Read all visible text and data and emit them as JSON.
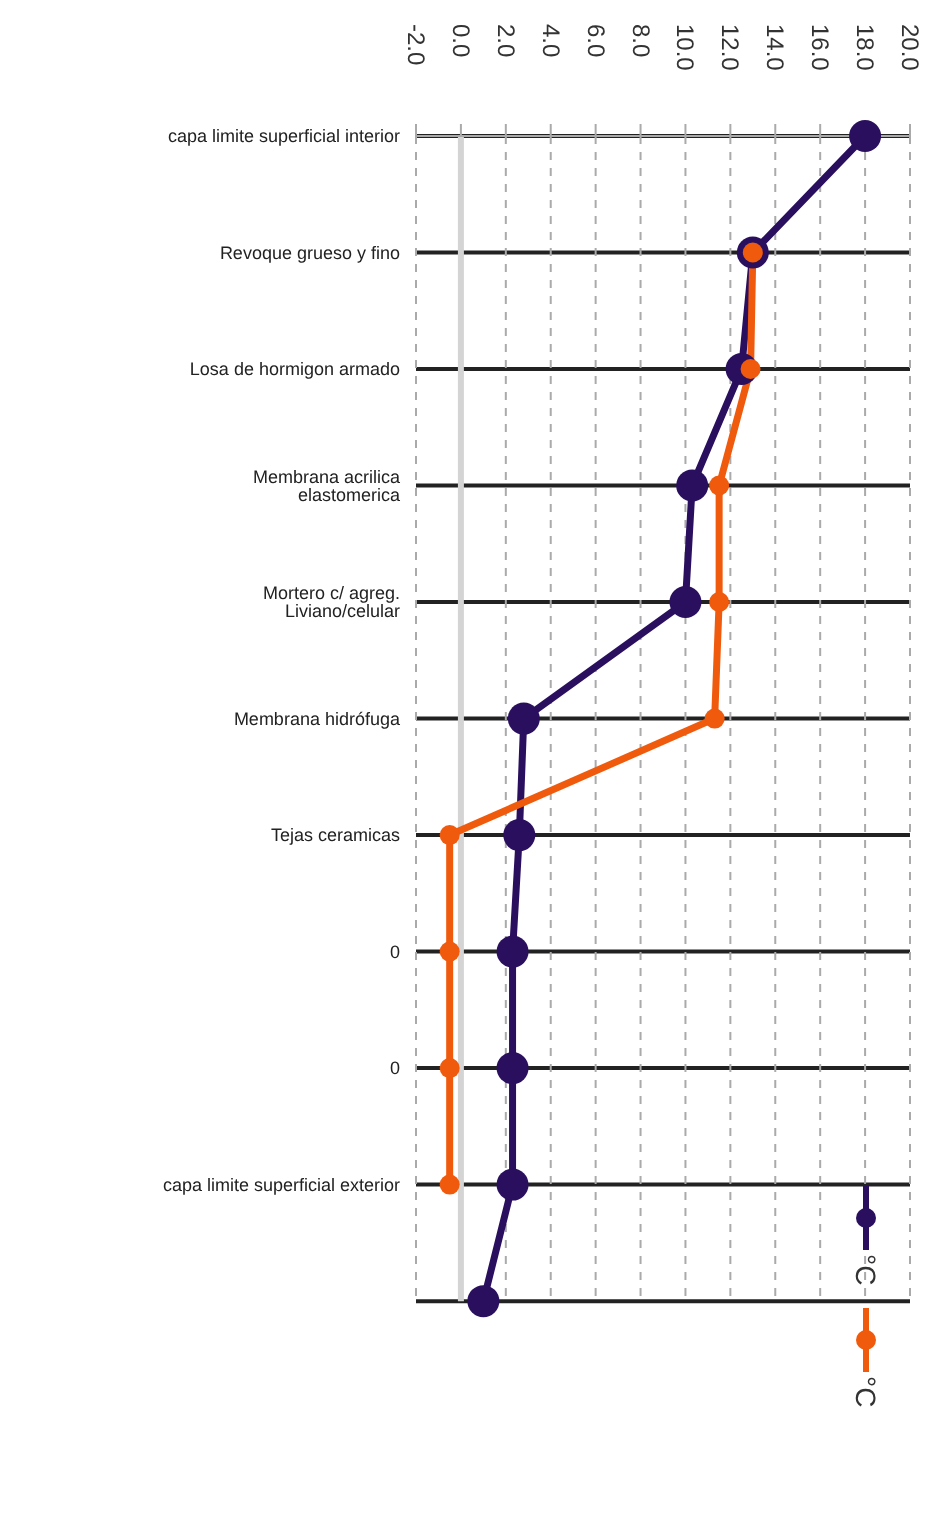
{
  "chart_data": {
    "type": "line",
    "orientation": "horizontal",
    "categories": [
      "capa limite superficial interior",
      "Revoque grueso y fino",
      "Losa de hormigon armado",
      "Membrana acrilica elastomerica",
      "Mortero c/ agreg. Liviano/celular",
      "Membrana hidrófuga ",
      "Tejas ceramicas",
      "0",
      "0",
      "capa limite superficial exterior",
      null
    ],
    "series": [
      {
        "name": "°C",
        "color": "#2a0f5e",
        "values": [
          18.0,
          13.0,
          12.5,
          10.3,
          10.0,
          2.8,
          2.6,
          2.3,
          2.3,
          2.3,
          1.0
        ]
      },
      {
        "name": "°C",
        "color": "#f05a0c",
        "values": [
          null,
          13.0,
          12.9,
          11.5,
          11.5,
          11.3,
          -0.5,
          -0.5,
          -0.5,
          -0.5,
          null
        ]
      }
    ],
    "xlim": [
      -2,
      20
    ],
    "xticks": [
      {
        "value": -2,
        "label": "-2.0"
      },
      {
        "value": 0,
        "label": "0.0"
      },
      {
        "value": 2,
        "label": "2.0"
      },
      {
        "value": 4,
        "label": "4.0"
      },
      {
        "value": 6,
        "label": "6.0"
      },
      {
        "value": 8,
        "label": "8.0"
      },
      {
        "value": 10,
        "label": "10.0"
      },
      {
        "value": 12,
        "label": "12.0"
      },
      {
        "value": 14,
        "label": "14.0"
      },
      {
        "value": 16,
        "label": "16.0"
      },
      {
        "value": 18,
        "label": "18.0"
      },
      {
        "value": 20,
        "label": "20.0"
      }
    ],
    "ref_lines": [
      {
        "axis": "x",
        "value": 0,
        "color": "#d4d4d4"
      }
    ],
    "grid": true,
    "legend": "bottom right",
    "marker": "circle",
    "line_style": "solid"
  }
}
